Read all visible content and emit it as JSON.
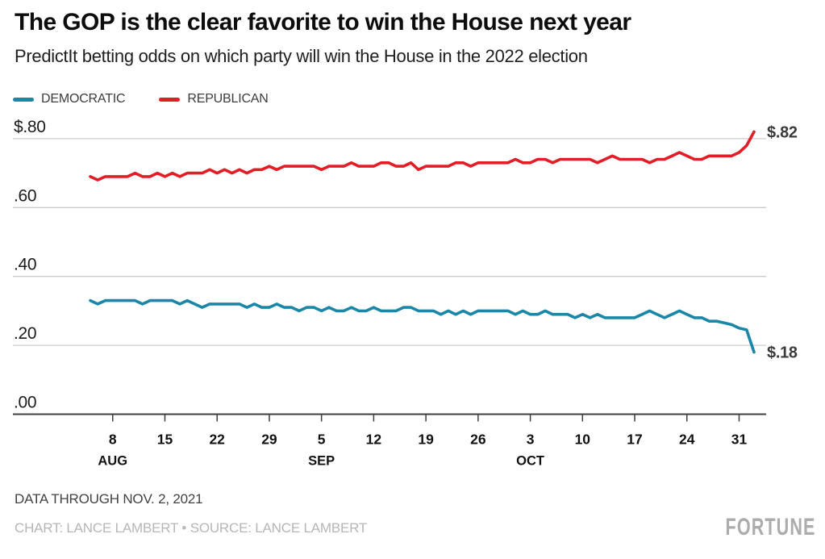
{
  "header": {
    "title": "The GOP is the clear favorite to win the House next year",
    "subtitle": "PredictIt betting odds on which party will win the House in the 2022 election"
  },
  "footer": {
    "note": "DATA THROUGH NOV. 2, 2021",
    "credit": "CHART: LANCE LAMBERT • SOURCE: LANCE LAMBERT",
    "brand": "FORTUNE"
  },
  "chart_data": {
    "type": "line",
    "title": "The GOP is the clear favorite to win the House next year",
    "subtitle": "PredictIt betting odds on which party will win the House in the 2022 election",
    "xlabel": "",
    "ylabel": "",
    "ylim": [
      0,
      0.86
    ],
    "grid": true,
    "legend_position": "top-left",
    "x_frequency": "daily",
    "x_points": 90,
    "yticks": [
      {
        "label": "$.80",
        "value": 0.8
      },
      {
        "label": ".60",
        "value": 0.6
      },
      {
        "label": ".40",
        "value": 0.4
      },
      {
        "label": ".20",
        "value": 0.2
      },
      {
        "label": ".00",
        "value": 0.0
      }
    ],
    "xticks": [
      {
        "label": "8",
        "day": 3,
        "month": "AUG"
      },
      {
        "label": "15",
        "day": 10
      },
      {
        "label": "22",
        "day": 17
      },
      {
        "label": "29",
        "day": 24
      },
      {
        "label": "5",
        "day": 31,
        "month": "SEP"
      },
      {
        "label": "12",
        "day": 38
      },
      {
        "label": "19",
        "day": 45
      },
      {
        "label": "26",
        "day": 52
      },
      {
        "label": "3",
        "day": 59,
        "month": "OCT"
      },
      {
        "label": "10",
        "day": 66
      },
      {
        "label": "17",
        "day": 73
      },
      {
        "label": "24",
        "day": 80
      },
      {
        "label": "31",
        "day": 87
      }
    ],
    "series": [
      {
        "name": "DEMOCRATIC",
        "color": "#1a87a9",
        "end_label": "$.18",
        "end_value": 0.18,
        "values": [
          0.33,
          0.32,
          0.33,
          0.33,
          0.33,
          0.33,
          0.33,
          0.32,
          0.33,
          0.33,
          0.33,
          0.33,
          0.32,
          0.33,
          0.32,
          0.31,
          0.32,
          0.32,
          0.32,
          0.32,
          0.32,
          0.31,
          0.32,
          0.31,
          0.31,
          0.32,
          0.31,
          0.31,
          0.3,
          0.31,
          0.31,
          0.3,
          0.31,
          0.3,
          0.3,
          0.31,
          0.3,
          0.3,
          0.31,
          0.3,
          0.3,
          0.3,
          0.31,
          0.31,
          0.3,
          0.3,
          0.3,
          0.29,
          0.3,
          0.29,
          0.3,
          0.29,
          0.3,
          0.3,
          0.3,
          0.3,
          0.3,
          0.29,
          0.3,
          0.29,
          0.29,
          0.3,
          0.29,
          0.29,
          0.29,
          0.28,
          0.29,
          0.28,
          0.29,
          0.28,
          0.28,
          0.28,
          0.28,
          0.28,
          0.29,
          0.3,
          0.29,
          0.28,
          0.29,
          0.3,
          0.29,
          0.28,
          0.28,
          0.27,
          0.27,
          0.265,
          0.26,
          0.25,
          0.245,
          0.18
        ]
      },
      {
        "name": "REPUBLICAN",
        "color": "#e21d26",
        "end_label": "$.82",
        "end_value": 0.82,
        "values": [
          0.69,
          0.68,
          0.69,
          0.69,
          0.69,
          0.69,
          0.7,
          0.69,
          0.69,
          0.7,
          0.69,
          0.7,
          0.69,
          0.7,
          0.7,
          0.7,
          0.71,
          0.7,
          0.71,
          0.7,
          0.71,
          0.7,
          0.71,
          0.71,
          0.72,
          0.71,
          0.72,
          0.72,
          0.72,
          0.72,
          0.72,
          0.71,
          0.72,
          0.72,
          0.72,
          0.73,
          0.72,
          0.72,
          0.72,
          0.73,
          0.73,
          0.72,
          0.72,
          0.73,
          0.71,
          0.72,
          0.72,
          0.72,
          0.72,
          0.73,
          0.73,
          0.72,
          0.73,
          0.73,
          0.73,
          0.73,
          0.73,
          0.74,
          0.73,
          0.73,
          0.74,
          0.74,
          0.73,
          0.74,
          0.74,
          0.74,
          0.74,
          0.74,
          0.73,
          0.74,
          0.75,
          0.74,
          0.74,
          0.74,
          0.74,
          0.73,
          0.74,
          0.74,
          0.75,
          0.76,
          0.75,
          0.74,
          0.74,
          0.75,
          0.75,
          0.75,
          0.75,
          0.76,
          0.78,
          0.82
        ]
      }
    ]
  }
}
